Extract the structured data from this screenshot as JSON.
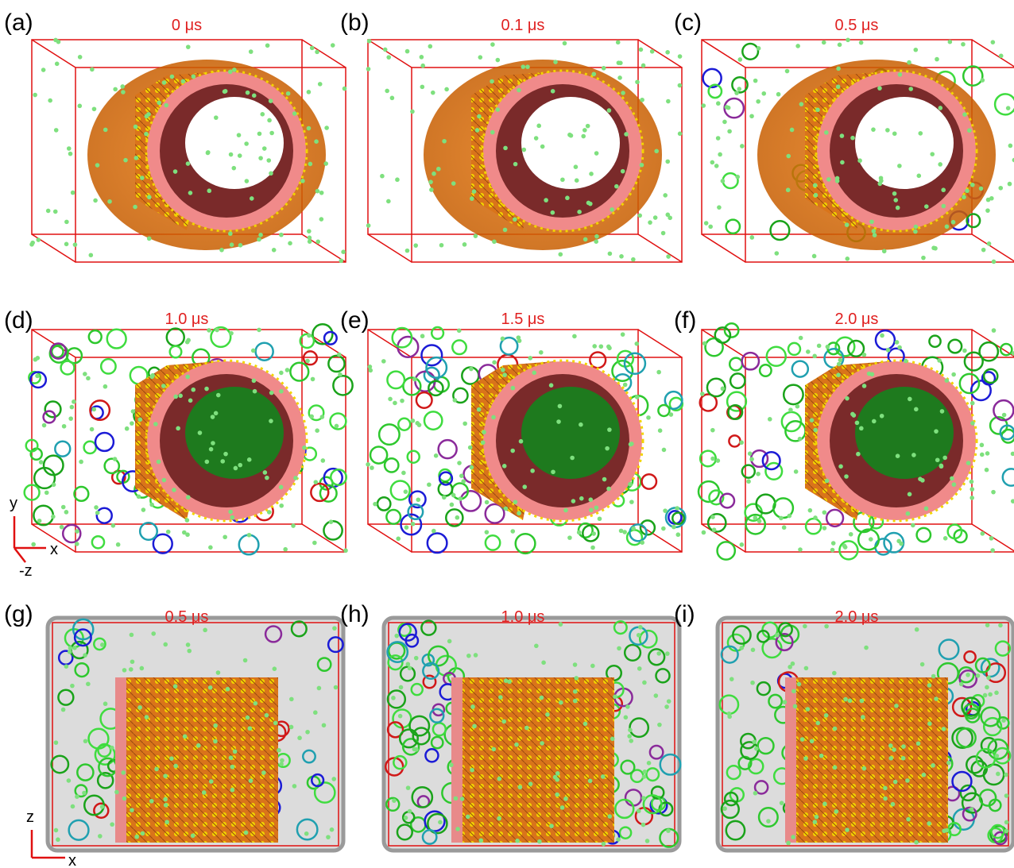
{
  "panels": [
    {
      "label": "(a)",
      "time": "0 μs"
    },
    {
      "label": "(b)",
      "time": "0.1 μs"
    },
    {
      "label": "(c)",
      "time": "0.5 μs"
    },
    {
      "label": "(d)",
      "time": "1.0 μs"
    },
    {
      "label": "(e)",
      "time": "1.5 μs"
    },
    {
      "label": "(f)",
      "time": "2.0 μs"
    },
    {
      "label": "(g)",
      "time": "0.5 μs"
    },
    {
      "label": "(h)",
      "time": "1.0 μs"
    },
    {
      "label": "(i)",
      "time": "2.0 μs"
    }
  ],
  "axes_xyz": {
    "y": "y",
    "x": "x",
    "z": "-z"
  },
  "axes_xz": {
    "z": "z",
    "x": "x"
  }
}
